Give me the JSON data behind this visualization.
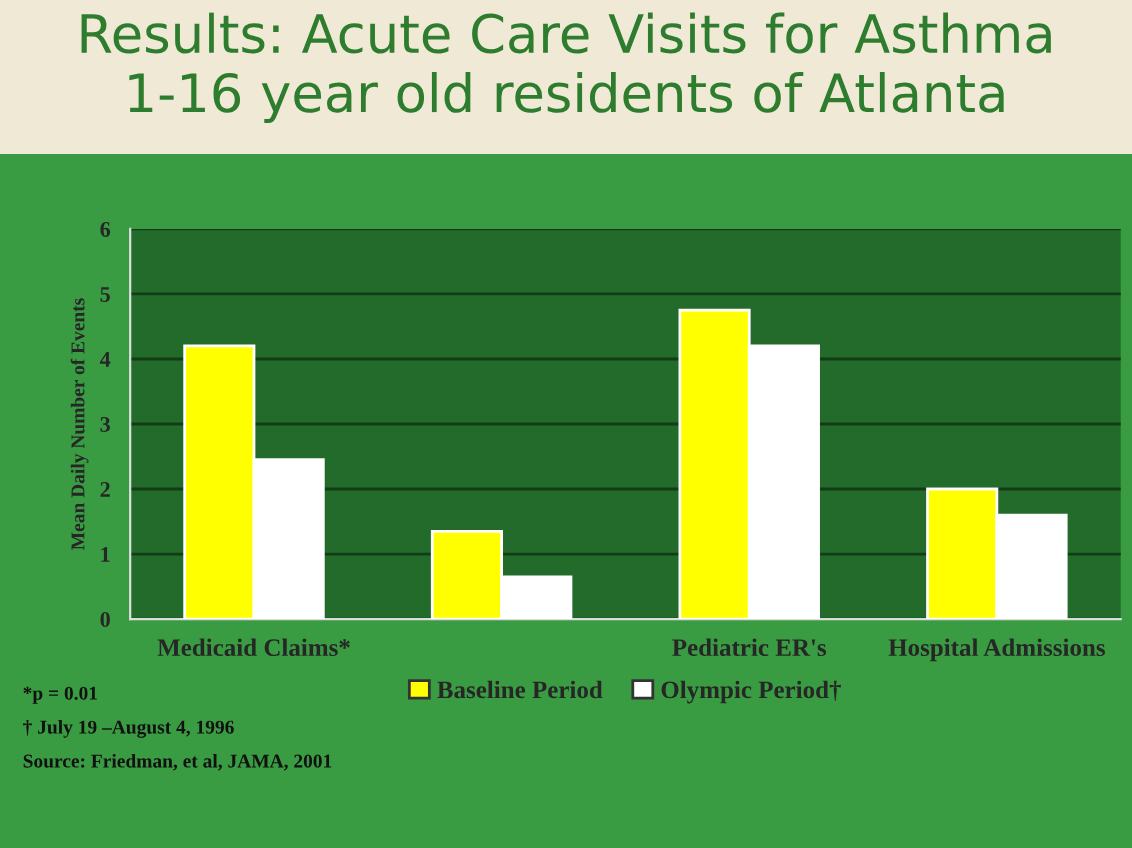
{
  "chart_data": {
    "type": "bar",
    "title": "Results: Acute Care Visits for Asthma",
    "subtitle": "1-16 year old residents of Atlanta",
    "ylabel": "Mean Daily Number of Events",
    "categories": [
      "Medicaid Claims*",
      null,
      "Pediatric ER's",
      "Hospital Admissions"
    ],
    "series": [
      {
        "name": "Baseline Period",
        "color": "#ffff00",
        "values": [
          4.2,
          1.35,
          4.75,
          2.0
        ]
      },
      {
        "name": "Olympic Period†",
        "color": "#ffffff",
        "values": [
          2.45,
          0.65,
          4.2,
          1.6
        ]
      }
    ],
    "ylim": [
      0,
      6
    ],
    "yticks": [
      0,
      1,
      2,
      3,
      4,
      5,
      6
    ],
    "grid": "y",
    "legend": "bottom",
    "annotations": [
      "*p = 0.01",
      "† July 19 –August 4, 1996",
      "Source: Friedman, et al, JAMA, 2001"
    ]
  }
}
